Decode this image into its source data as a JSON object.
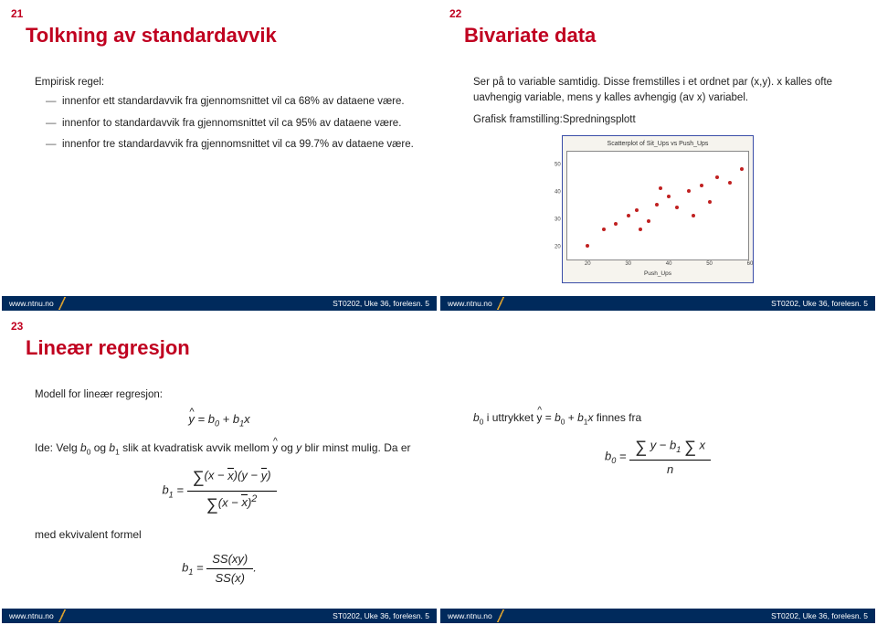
{
  "footer": {
    "left": "www.ntnu.no",
    "right": "ST0202, Uke 36, forelesn. 5",
    "bg": "#002a5c"
  },
  "slide21": {
    "num": "21",
    "title": "Tolkning av standardavvik",
    "lead": "Empirisk regel:",
    "bullets": [
      "innenfor ett standardavvik fra gjennomsnittet vil ca 68% av dataene være.",
      "innenfor to standardavvik fra gjennomsnittet vil ca 95% av dataene være.",
      "innenfor tre standardavvik fra gjennomsnittet vil ca 99.7% av dataene være."
    ]
  },
  "slide22": {
    "num": "22",
    "title": "Bivariate data",
    "para1": "Ser på to variable samtidig. Disse fremstilles i et ordnet par (x,y). x kalles ofte uavhengig variable, mens y kalles avhengig (av x) variabel.",
    "para2": "Grafisk framstilling:Spredningsplott",
    "scatter": {
      "title": "Scatterplot of Sit_Ups vs Push_Ups",
      "xlabel": "Push_Ups",
      "x_ticks": [
        20,
        30,
        40,
        50,
        60
      ],
      "y_ticks": [
        20,
        30,
        40,
        50
      ],
      "xlim": [
        15,
        60
      ],
      "ylim": [
        15,
        55
      ],
      "dot_color": "#c02020",
      "frame_color": "#3a4da8",
      "plot_bg": "#ffffff",
      "panel_bg": "#f6f4ee",
      "points": [
        [
          20,
          22
        ],
        [
          24,
          28
        ],
        [
          27,
          30
        ],
        [
          30,
          33
        ],
        [
          32,
          35
        ],
        [
          35,
          31
        ],
        [
          37,
          37
        ],
        [
          40,
          40
        ],
        [
          42,
          36
        ],
        [
          45,
          42
        ],
        [
          48,
          44
        ],
        [
          50,
          38
        ],
        [
          52,
          47
        ],
        [
          55,
          45
        ],
        [
          58,
          50
        ],
        [
          33,
          28
        ],
        [
          38,
          43
        ],
        [
          46,
          33
        ]
      ]
    }
  },
  "slide23": {
    "num": "23",
    "title": "Lineær regresjon",
    "lead": "Modell for lineær regresjon:",
    "model_lhs": "ŷ",
    "model_rhs": "b₀ + b₁x",
    "ide_text_pre": "Ide: Velg ",
    "ide_text_mid1": " og ",
    "ide_text_mid2": " slik at kvadratisk avvik mellom ",
    "ide_text_mid3": " og ",
    "ide_text_end": " blir minst mulig. Da er",
    "b0": "b₀",
    "b1": "b₁",
    "yhat": "ŷ",
    "y": "y",
    "equiv": "med ekvivalent formel",
    "b1_alt_num": "SS(xy)",
    "b1_alt_den": "SS(x)"
  },
  "slide24": {
    "intro_pre": "b₀ i uttrykket ",
    "intro_eq": "ŷ = b₀ + b₁x",
    "intro_post": " finnes fra"
  },
  "colors": {
    "accent": "#c00020",
    "text": "#222222"
  }
}
